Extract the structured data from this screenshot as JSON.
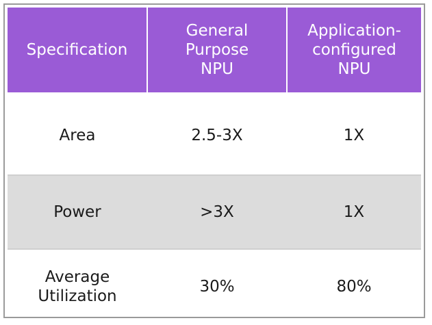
{
  "table": {
    "headers": [
      {
        "lines": [
          "Specification"
        ]
      },
      {
        "lines": [
          "General",
          "Purpose",
          "NPU"
        ]
      },
      {
        "lines": [
          "Application-",
          "configured",
          "NPU"
        ]
      }
    ],
    "rows": [
      {
        "spec": "Area",
        "general": "2.5-3X",
        "app": "1X"
      },
      {
        "spec": "Power",
        "general": ">3X",
        "app": "1X"
      },
      {
        "spec_lines": [
          "Average",
          "Utilization"
        ],
        "general": "30%",
        "app": "80%"
      }
    ]
  },
  "colors": {
    "header_bg": "#9a5bd6",
    "header_text": "#ffffff",
    "shaded_row_bg": "#dcdcdc",
    "frame_border": "#9a9a9a"
  }
}
